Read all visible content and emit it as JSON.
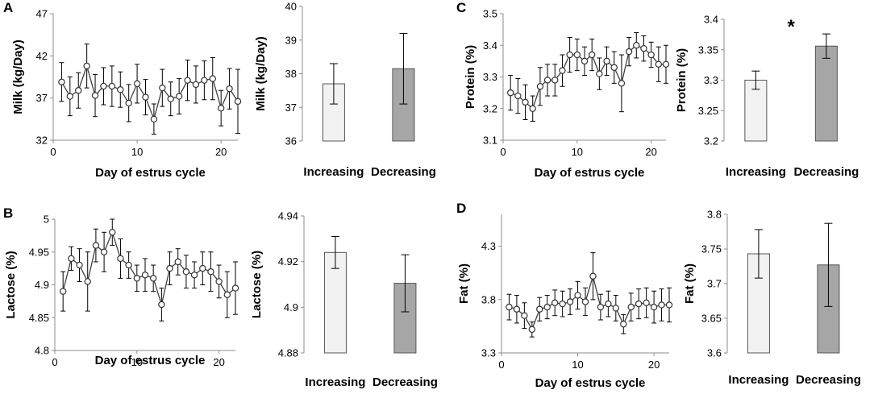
{
  "figure": {
    "colors": {
      "axis": "#8c8c8c",
      "ink": "#000000",
      "marker_fill": "#ffffff",
      "line": "#404040"
    }
  },
  "chart_data": [
    {
      "id": "A_line",
      "type": "line",
      "panel_label": "A",
      "xlabel": "Day of estrus cycle",
      "ylabel": "Milk (kg/Day)",
      "xlim": [
        0,
        22
      ],
      "ylim": [
        32,
        47
      ],
      "xticks": [
        0,
        10,
        20
      ],
      "yticks": [
        32,
        37,
        42,
        47
      ],
      "ytick_labels": [
        "32",
        "37",
        "42",
        "47"
      ],
      "x": [
        1,
        2,
        3,
        4,
        5,
        6,
        7,
        8,
        9,
        10,
        11,
        12,
        13,
        14,
        15,
        16,
        17,
        18,
        19,
        20,
        21,
        22
      ],
      "y": [
        38.9,
        37.2,
        37.9,
        40.8,
        37.3,
        38.4,
        38.4,
        38.0,
        36.4,
        38.7,
        37.1,
        34.5,
        38.2,
        36.9,
        37.2,
        39.1,
        38.6,
        39.1,
        39.3,
        35.8,
        38.1,
        36.6
      ],
      "err": [
        2.3,
        2.3,
        2.1,
        2.6,
        2.5,
        2.2,
        2.4,
        2.1,
        2.2,
        2.3,
        2.1,
        1.8,
        2.2,
        2.0,
        2.1,
        2.4,
        2.2,
        2.3,
        2.5,
        2.1,
        2.4,
        3.8
      ]
    },
    {
      "id": "A_bar",
      "type": "bar",
      "ylabel": "Milk (kg/Day)",
      "categories": [
        "Increasing",
        "Decreasing"
      ],
      "values": [
        37.7,
        38.15
      ],
      "err": [
        0.6,
        1.05
      ],
      "bar_colors": [
        "#f2f2f2",
        "#a6a6a6"
      ],
      "ylim": [
        36,
        40
      ],
      "yticks": [
        36,
        37,
        38,
        39,
        40
      ],
      "ytick_labels": [
        "36",
        "37",
        "38",
        "39",
        "40"
      ],
      "annotation": ""
    },
    {
      "id": "C_line",
      "type": "line",
      "panel_label": "C",
      "xlabel": "Day of estrus cycle",
      "ylabel": "Protein (%)",
      "xlim": [
        0,
        22
      ],
      "ylim": [
        3.1,
        3.5
      ],
      "xticks": [
        0,
        10,
        20
      ],
      "yticks": [
        3.1,
        3.2,
        3.3,
        3.4,
        3.5
      ],
      "ytick_labels": [
        "3.1",
        "3.2",
        "3.3",
        "3.4",
        "3.5"
      ],
      "x": [
        1,
        2,
        3,
        4,
        5,
        6,
        7,
        8,
        9,
        10,
        11,
        12,
        13,
        14,
        15,
        16,
        17,
        18,
        19,
        20,
        21,
        22
      ],
      "y": [
        3.25,
        3.24,
        3.22,
        3.2,
        3.27,
        3.29,
        3.29,
        3.32,
        3.37,
        3.37,
        3.35,
        3.37,
        3.31,
        3.35,
        3.33,
        3.28,
        3.38,
        3.4,
        3.39,
        3.37,
        3.34,
        3.34
      ],
      "err": [
        0.055,
        0.055,
        0.055,
        0.04,
        0.06,
        0.05,
        0.05,
        0.05,
        0.055,
        0.05,
        0.045,
        0.05,
        0.05,
        0.045,
        0.05,
        0.09,
        0.045,
        0.04,
        0.04,
        0.04,
        0.055,
        0.06
      ]
    },
    {
      "id": "C_bar",
      "type": "bar",
      "ylabel": "Protein (%)",
      "categories": [
        "Increasing",
        "Decreasing"
      ],
      "values": [
        3.3,
        3.356
      ],
      "err": [
        0.015,
        0.02
      ],
      "bar_colors": [
        "#f2f2f2",
        "#a6a6a6"
      ],
      "ylim": [
        3.2,
        3.4
      ],
      "yticks": [
        3.2,
        3.25,
        3.3,
        3.35,
        3.4
      ],
      "ytick_labels": [
        "3.2",
        "3.25",
        "3.3",
        "3.35",
        "3.4"
      ],
      "annotation": "*"
    },
    {
      "id": "B_line",
      "type": "line",
      "panel_label": "B",
      "xlabel": "Day of estrus cycle",
      "ylabel": "Lactose (%)",
      "xlim": [
        0,
        22
      ],
      "ylim": [
        4.8,
        5.0
      ],
      "xticks": [
        0,
        10,
        20
      ],
      "yticks": [
        4.8,
        4.85,
        4.9,
        4.95,
        5.0
      ],
      "ytick_labels": [
        "4.8",
        "4.85",
        "4.9",
        "4.95",
        "5"
      ],
      "x": [
        1,
        2,
        3,
        4,
        5,
        6,
        7,
        8,
        9,
        10,
        11,
        12,
        13,
        14,
        15,
        16,
        17,
        18,
        19,
        20,
        21,
        22
      ],
      "y": [
        4.89,
        4.94,
        4.93,
        4.905,
        4.96,
        4.95,
        4.98,
        4.94,
        4.93,
        4.91,
        4.915,
        4.91,
        4.87,
        4.925,
        4.935,
        4.92,
        4.915,
        4.925,
        4.92,
        4.905,
        4.885,
        4.895
      ],
      "err": [
        0.03,
        0.018,
        0.025,
        0.045,
        0.025,
        0.03,
        0.02,
        0.03,
        0.02,
        0.02,
        0.025,
        0.02,
        0.025,
        0.025,
        0.02,
        0.025,
        0.02,
        0.025,
        0.03,
        0.025,
        0.035,
        0.04
      ]
    },
    {
      "id": "B_bar",
      "type": "bar",
      "ylabel": "Lactose (%)",
      "categories": [
        "Increasing",
        "Decreasing"
      ],
      "values": [
        4.924,
        4.9105
      ],
      "err": [
        0.007,
        0.0125
      ],
      "bar_colors": [
        "#f2f2f2",
        "#a6a6a6"
      ],
      "ylim": [
        4.88,
        4.94
      ],
      "yticks": [
        4.88,
        4.9,
        4.92,
        4.94
      ],
      "ytick_labels": [
        "4.88",
        "4.9",
        "4.92",
        "4.94"
      ],
      "annotation": ""
    },
    {
      "id": "D_line",
      "type": "line",
      "panel_label": "D",
      "xlabel": "Day of estrus cycle",
      "ylabel": "Fat (%)",
      "xlim": [
        0,
        22
      ],
      "ylim": [
        3.3,
        4.6
      ],
      "xticks": [
        0,
        10,
        20
      ],
      "yticks": [
        3.3,
        3.8,
        4.3
      ],
      "ytick_labels": [
        "3.3",
        "3.8",
        "4.3"
      ],
      "x": [
        1,
        2,
        3,
        4,
        5,
        6,
        7,
        8,
        9,
        10,
        11,
        12,
        13,
        14,
        15,
        16,
        17,
        18,
        19,
        20,
        21,
        22
      ],
      "y": [
        3.73,
        3.71,
        3.65,
        3.52,
        3.71,
        3.73,
        3.77,
        3.76,
        3.78,
        3.84,
        3.78,
        4.02,
        3.73,
        3.76,
        3.72,
        3.57,
        3.73,
        3.76,
        3.77,
        3.73,
        3.75,
        3.75
      ],
      "err": [
        0.12,
        0.13,
        0.12,
        0.07,
        0.11,
        0.11,
        0.12,
        0.12,
        0.12,
        0.13,
        0.13,
        0.22,
        0.12,
        0.12,
        0.12,
        0.09,
        0.13,
        0.14,
        0.14,
        0.15,
        0.15,
        0.16
      ]
    },
    {
      "id": "D_bar",
      "type": "bar",
      "ylabel": "Fat (%)",
      "categories": [
        "Increasing",
        "Decreasing"
      ],
      "values": [
        3.743,
        3.727
      ],
      "err": [
        0.035,
        0.06
      ],
      "bar_colors": [
        "#f2f2f2",
        "#a6a6a6"
      ],
      "ylim": [
        3.6,
        3.8
      ],
      "yticks": [
        3.6,
        3.65,
        3.7,
        3.75,
        3.8
      ],
      "ytick_labels": [
        "3.6",
        "3.65",
        "3.7",
        "3.75",
        "3.8"
      ],
      "annotation": ""
    }
  ]
}
